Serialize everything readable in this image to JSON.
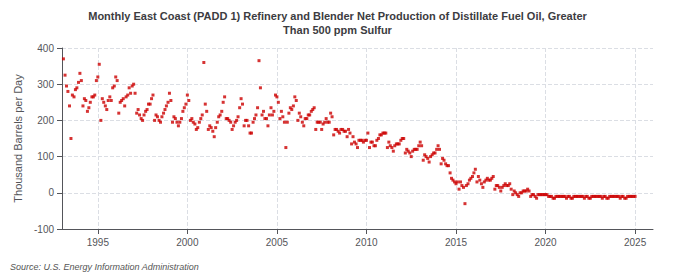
{
  "chart_data": {
    "type": "scatter",
    "title": "Monthly East Coast (PADD 1) Refinery and Blender Net Production of Distillate Fuel Oil, Greater\nThan 500 ppm Sulfur",
    "ylabel": "Thousand Barrels per Day",
    "annotations": [
      "Source: U.S. Energy Information Administration"
    ],
    "color": "#cc0000",
    "marker": "square",
    "grid": true,
    "xlim": [
      1993.0,
      2026.0
    ],
    "xticks": [
      1995,
      2000,
      2005,
      2010,
      2015,
      2020,
      2025
    ],
    "ylim": [
      -100,
      400
    ],
    "yticks": [
      -100,
      0,
      100,
      200,
      300,
      400
    ],
    "x": [
      1993.08,
      1993.17,
      1993.25,
      1993.33,
      1993.42,
      1993.5,
      1993.58,
      1993.67,
      1993.75,
      1993.83,
      1993.92,
      1994.0,
      1994.08,
      1994.17,
      1994.25,
      1994.33,
      1994.42,
      1994.5,
      1994.58,
      1994.67,
      1994.75,
      1994.83,
      1994.92,
      1995.0,
      1995.08,
      1995.17,
      1995.25,
      1995.33,
      1995.42,
      1995.5,
      1995.58,
      1995.67,
      1995.75,
      1995.83,
      1995.92,
      1996.0,
      1996.08,
      1996.17,
      1996.25,
      1996.33,
      1996.42,
      1996.5,
      1996.58,
      1996.67,
      1996.75,
      1996.83,
      1996.92,
      1997.0,
      1997.08,
      1997.17,
      1997.25,
      1997.33,
      1997.42,
      1997.5,
      1997.58,
      1997.67,
      1997.75,
      1997.83,
      1997.92,
      1998.0,
      1998.08,
      1998.17,
      1998.25,
      1998.33,
      1998.42,
      1998.5,
      1998.58,
      1998.67,
      1998.75,
      1998.83,
      1998.92,
      1999.0,
      1999.08,
      1999.17,
      1999.25,
      1999.33,
      1999.42,
      1999.5,
      1999.58,
      1999.67,
      1999.75,
      1999.83,
      1999.92,
      2000.0,
      2000.08,
      2000.17,
      2000.25,
      2000.33,
      2000.42,
      2000.5,
      2000.58,
      2000.67,
      2000.75,
      2000.83,
      2000.92,
      2001.0,
      2001.08,
      2001.17,
      2001.25,
      2001.33,
      2001.42,
      2001.5,
      2001.58,
      2001.67,
      2001.75,
      2001.83,
      2001.92,
      2002.0,
      2002.08,
      2002.17,
      2002.25,
      2002.33,
      2002.42,
      2002.5,
      2002.58,
      2002.67,
      2002.75,
      2002.83,
      2002.92,
      2003.0,
      2003.08,
      2003.17,
      2003.25,
      2003.33,
      2003.42,
      2003.5,
      2003.58,
      2003.67,
      2003.75,
      2003.83,
      2003.92,
      2004.0,
      2004.08,
      2004.17,
      2004.25,
      2004.33,
      2004.42,
      2004.5,
      2004.58,
      2004.67,
      2004.75,
      2004.83,
      2004.92,
      2005.0,
      2005.08,
      2005.17,
      2005.25,
      2005.33,
      2005.42,
      2005.5,
      2005.58,
      2005.67,
      2005.75,
      2005.83,
      2005.92,
      2006.0,
      2006.08,
      2006.17,
      2006.25,
      2006.33,
      2006.42,
      2006.5,
      2006.58,
      2006.67,
      2006.75,
      2006.83,
      2006.92,
      2007.0,
      2007.08,
      2007.17,
      2007.25,
      2007.33,
      2007.42,
      2007.5,
      2007.58,
      2007.67,
      2007.75,
      2007.83,
      2007.92,
      2008.0,
      2008.08,
      2008.17,
      2008.25,
      2008.33,
      2008.42,
      2008.5,
      2008.58,
      2008.67,
      2008.75,
      2008.83,
      2008.92,
      2009.0,
      2009.08,
      2009.17,
      2009.25,
      2009.33,
      2009.42,
      2009.5,
      2009.58,
      2009.67,
      2009.75,
      2009.83,
      2009.92,
      2010.0,
      2010.08,
      2010.17,
      2010.25,
      2010.33,
      2010.42,
      2010.5,
      2010.58,
      2010.67,
      2010.75,
      2010.83,
      2010.92,
      2011.0,
      2011.08,
      2011.17,
      2011.25,
      2011.33,
      2011.42,
      2011.5,
      2011.58,
      2011.67,
      2011.75,
      2011.83,
      2011.92,
      2012.0,
      2012.08,
      2012.17,
      2012.25,
      2012.33,
      2012.42,
      2012.5,
      2012.58,
      2012.67,
      2012.75,
      2012.83,
      2012.92,
      2013.0,
      2013.08,
      2013.17,
      2013.25,
      2013.33,
      2013.42,
      2013.5,
      2013.58,
      2013.67,
      2013.75,
      2013.83,
      2013.92,
      2014.0,
      2014.08,
      2014.17,
      2014.25,
      2014.33,
      2014.42,
      2014.5,
      2014.58,
      2014.67,
      2014.75,
      2014.83,
      2014.92,
      2015.0,
      2015.08,
      2015.17,
      2015.25,
      2015.33,
      2015.42,
      2015.5,
      2015.58,
      2015.67,
      2015.75,
      2015.83,
      2015.92,
      2016.0,
      2016.08,
      2016.17,
      2016.25,
      2016.33,
      2016.42,
      2016.5,
      2016.58,
      2016.67,
      2016.75,
      2016.83,
      2016.92,
      2017.0,
      2017.08,
      2017.17,
      2017.25,
      2017.33,
      2017.42,
      2017.5,
      2017.58,
      2017.67,
      2017.75,
      2017.83,
      2017.92,
      2018.0,
      2018.08,
      2018.17,
      2018.25,
      2018.33,
      2018.42,
      2018.5,
      2018.58,
      2018.67,
      2018.75,
      2018.83,
      2018.92,
      2019.0,
      2019.08,
      2019.17,
      2019.25,
      2019.33,
      2019.42,
      2019.5,
      2019.58,
      2019.67,
      2019.75,
      2019.83,
      2019.92,
      2020.0,
      2020.08,
      2020.17,
      2020.25,
      2020.33,
      2020.42,
      2020.5,
      2020.58,
      2020.67,
      2020.75,
      2020.83,
      2020.92,
      2021.0,
      2021.08,
      2021.17,
      2021.25,
      2021.33,
      2021.42,
      2021.5,
      2021.58,
      2021.67,
      2021.75,
      2021.83,
      2021.92,
      2022.0,
      2022.08,
      2022.17,
      2022.25,
      2022.33,
      2022.42,
      2022.5,
      2022.58,
      2022.67,
      2022.75,
      2022.83,
      2022.92,
      2023.0,
      2023.08,
      2023.17,
      2023.25,
      2023.33,
      2023.42,
      2023.5,
      2023.58,
      2023.67,
      2023.75,
      2023.83,
      2023.92,
      2024.0,
      2024.08,
      2024.17,
      2024.25,
      2024.33,
      2024.42,
      2024.5,
      2024.58,
      2024.67,
      2024.75,
      2024.83,
      2024.92,
      2025.0
    ],
    "values": [
      370,
      325,
      295,
      280,
      240,
      150,
      270,
      265,
      285,
      290,
      305,
      330,
      310,
      240,
      260,
      255,
      225,
      235,
      250,
      265,
      265,
      270,
      310,
      320,
      355,
      200,
      260,
      250,
      240,
      230,
      255,
      265,
      255,
      290,
      295,
      320,
      310,
      220,
      250,
      255,
      260,
      240,
      265,
      270,
      290,
      275,
      295,
      300,
      275,
      220,
      230,
      215,
      205,
      200,
      215,
      225,
      230,
      245,
      245,
      260,
      270,
      200,
      215,
      210,
      200,
      195,
      210,
      220,
      230,
      240,
      250,
      275,
      255,
      195,
      210,
      205,
      195,
      185,
      195,
      205,
      225,
      235,
      245,
      270,
      255,
      200,
      205,
      195,
      190,
      175,
      180,
      195,
      205,
      215,
      360,
      245,
      225,
      175,
      185,
      180,
      170,
      155,
      180,
      195,
      210,
      215,
      225,
      250,
      265,
      205,
      205,
      200,
      195,
      175,
      185,
      195,
      200,
      210,
      235,
      260,
      245,
      185,
      200,
      200,
      185,
      165,
      165,
      195,
      205,
      215,
      235,
      365,
      290,
      215,
      225,
      205,
      205,
      185,
      215,
      235,
      215,
      225,
      270,
      265,
      250,
      205,
      225,
      210,
      195,
      125,
      195,
      220,
      235,
      230,
      240,
      265,
      255,
      200,
      220,
      210,
      195,
      185,
      205,
      205,
      215,
      215,
      225,
      230,
      235,
      175,
      195,
      195,
      195,
      175,
      190,
      195,
      205,
      195,
      195,
      220,
      210,
      160,
      175,
      175,
      170,
      165,
      175,
      175,
      170,
      170,
      155,
      175,
      165,
      135,
      155,
      140,
      135,
      125,
      145,
      145,
      145,
      140,
      145,
      145,
      165,
      125,
      140,
      140,
      130,
      130,
      145,
      150,
      160,
      160,
      165,
      165,
      165,
      125,
      140,
      130,
      125,
      115,
      130,
      135,
      135,
      135,
      145,
      150,
      150,
      110,
      120,
      115,
      110,
      100,
      115,
      120,
      120,
      120,
      130,
      140,
      130,
      90,
      105,
      100,
      95,
      85,
      100,
      105,
      110,
      110,
      120,
      130,
      120,
      80,
      95,
      90,
      80,
      75,
      75,
      55,
      40,
      35,
      30,
      25,
      30,
      10,
      30,
      20,
      15,
      -30,
      20,
      25,
      35,
      40,
      45,
      55,
      65,
      30,
      45,
      35,
      25,
      15,
      30,
      35,
      40,
      35,
      35,
      40,
      45,
      10,
      20,
      20,
      15,
      5,
      15,
      20,
      25,
      20,
      20,
      25,
      10,
      -5,
      5,
      0,
      -5,
      -10,
      0,
      0,
      5,
      5,
      5,
      10,
      5,
      -10,
      -5,
      -5,
      -10,
      -15,
      -5,
      -5,
      -5,
      -5,
      -5,
      -5,
      -5,
      -10,
      -10,
      -10,
      -15,
      -15,
      -10,
      -10,
      -10,
      -10,
      -10,
      -10,
      -10,
      -15,
      -10,
      -10,
      -15,
      -15,
      -10,
      -10,
      -10,
      -10,
      -10,
      -10,
      -10,
      -15,
      -10,
      -10,
      -15,
      -15,
      -10,
      -10,
      -10,
      -10,
      -10,
      -10,
      -10,
      -15,
      -10,
      -10,
      -15,
      -15,
      -10,
      -10,
      -10,
      -10,
      -10,
      -10,
      -10,
      -15,
      -10,
      -10,
      -15,
      -15,
      -10,
      -10,
      -10,
      -10,
      -10,
      -10
    ]
  }
}
